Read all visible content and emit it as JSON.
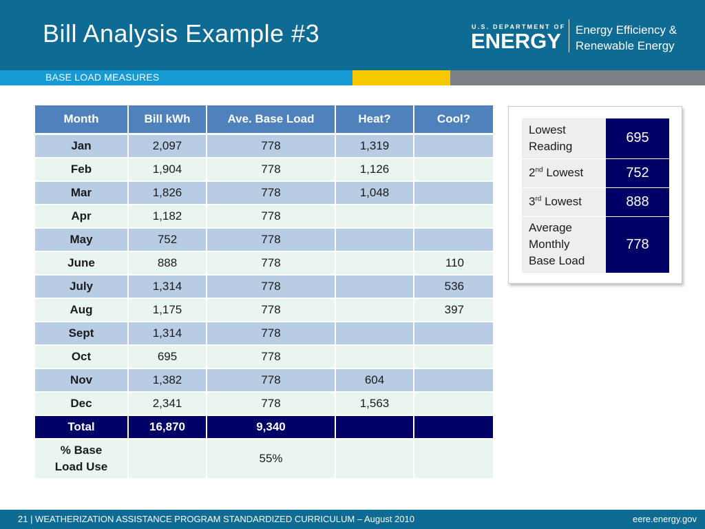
{
  "header": {
    "title": "Bill Analysis Example #3",
    "logo_dept": "U.S. DEPARTMENT OF",
    "logo_energy": "ENERGY",
    "logo_eere_line1": "Energy Efficiency &",
    "logo_eere_line2": "Renewable Energy"
  },
  "subtitle": "BASE LOAD MEASURES",
  "table": {
    "headers": [
      "Month",
      "Bill kWh",
      "Ave. Base Load",
      "Heat?",
      "Cool?"
    ],
    "rows": [
      {
        "month": "Jan",
        "kwh": "2,097",
        "base": "778",
        "heat": "1,319",
        "cool": ""
      },
      {
        "month": "Feb",
        "kwh": "1,904",
        "base": "778",
        "heat": "1,126",
        "cool": ""
      },
      {
        "month": "Mar",
        "kwh": "1,826",
        "base": "778",
        "heat": "1,048",
        "cool": ""
      },
      {
        "month": "Apr",
        "kwh": "1,182",
        "base": "778",
        "heat": "",
        "cool": ""
      },
      {
        "month": "May",
        "kwh": "752",
        "base": "778",
        "heat": "",
        "cool": ""
      },
      {
        "month": "June",
        "kwh": "888",
        "base": "778",
        "heat": "",
        "cool": "110"
      },
      {
        "month": "July",
        "kwh": "1,314",
        "base": "778",
        "heat": "",
        "cool": "536"
      },
      {
        "month": "Aug",
        "kwh": "1,175",
        "base": "778",
        "heat": "",
        "cool": "397"
      },
      {
        "month": "Sept",
        "kwh": "1,314",
        "base": "778",
        "heat": "",
        "cool": ""
      },
      {
        "month": "Oct",
        "kwh": "695",
        "base": "778",
        "heat": "",
        "cool": ""
      },
      {
        "month": "Nov",
        "kwh": "1,382",
        "base": "778",
        "heat": "604",
        "cool": ""
      },
      {
        "month": "Dec",
        "kwh": "2,341",
        "base": "778",
        "heat": "1,563",
        "cool": ""
      }
    ],
    "total": {
      "label": "Total",
      "kwh": "16,870",
      "base": "9,340",
      "heat": "",
      "cool": ""
    },
    "pct": {
      "label_line1": "% Base",
      "label_line2": "Load Use",
      "kwh": "",
      "base": "55%",
      "heat": "",
      "cool": ""
    }
  },
  "side": {
    "lowest_label_line1": "Lowest",
    "lowest_label_line2": "Reading",
    "lowest_value": "695",
    "second_prefix": "2",
    "second_sup": "nd",
    "second_suffix": " Lowest",
    "second_value": "752",
    "third_prefix": "3",
    "third_sup": "rd",
    "third_suffix": " Lowest",
    "third_value": "888",
    "avg_label_line1": "Average",
    "avg_label_line2": "Monthly",
    "avg_label_line3": "Base Load",
    "avg_value": "778"
  },
  "footer": {
    "left": "21 | WEATHERIZATION ASSISTANCE PROGRAM STANDARDIZED CURRICULUM – August 2010",
    "right": "eere.energy.gov"
  }
}
